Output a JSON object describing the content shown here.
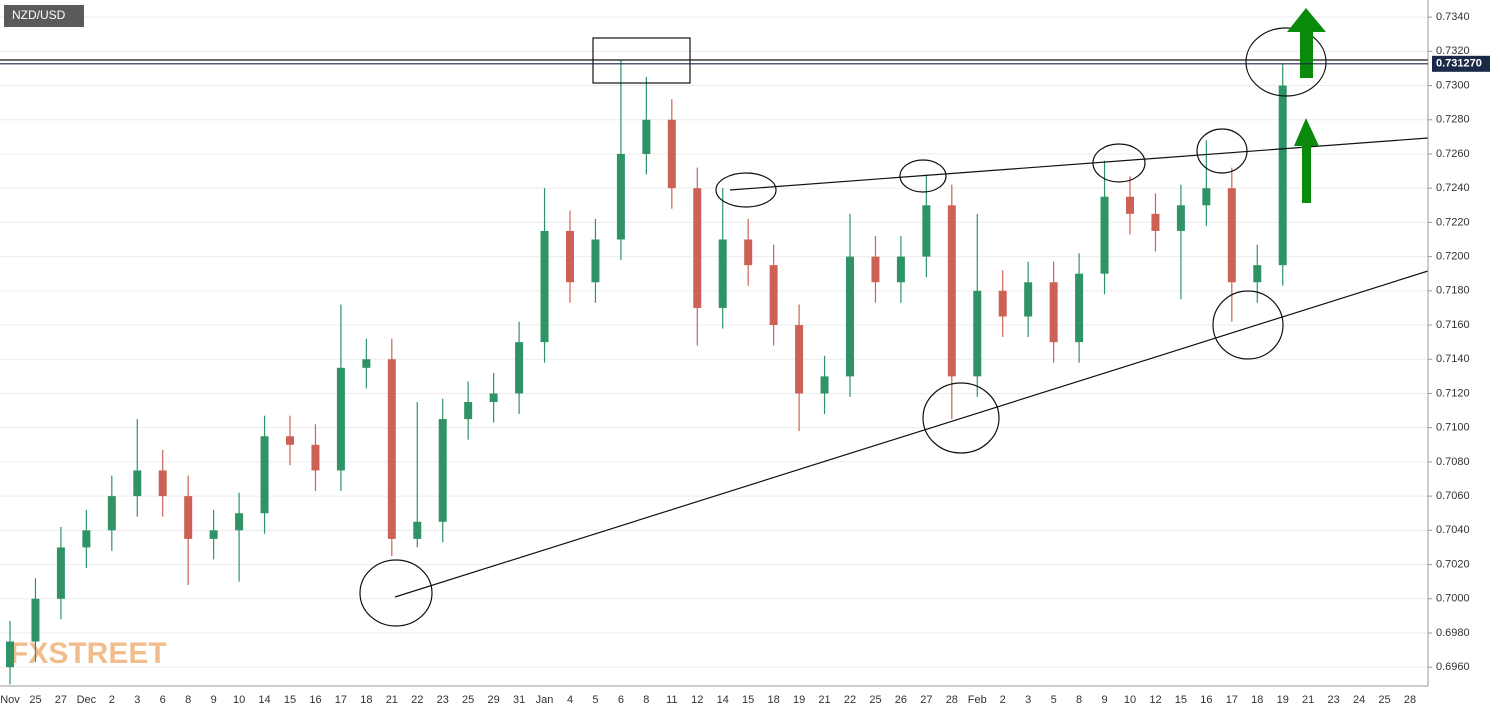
{
  "chart_data": {
    "type": "candlestick",
    "title": "NZD/USD",
    "watermark": "FXSTREET",
    "categories": [
      "Nov",
      "25",
      "27",
      "Dec",
      "2",
      "3",
      "6",
      "8",
      "9",
      "10",
      "14",
      "15",
      "16",
      "17",
      "18",
      "21",
      "22",
      "23",
      "25",
      "29",
      "31",
      "Jan",
      "4",
      "5",
      "6",
      "8",
      "11",
      "12",
      "14",
      "15",
      "18",
      "19",
      "21",
      "22",
      "25",
      "26",
      "27",
      "28",
      "Feb",
      "2",
      "3",
      "5",
      "8",
      "9",
      "10",
      "12",
      "15",
      "16",
      "17",
      "18",
      "19",
      "21",
      "23",
      "24",
      "25",
      "28"
    ],
    "open": [
      0.696,
      0.6975,
      0.7,
      0.703,
      0.704,
      0.706,
      0.7075,
      0.706,
      0.7035,
      0.704,
      0.705,
      0.7095,
      0.709,
      0.7075,
      0.7135,
      0.714,
      0.7035,
      0.7045,
      0.7105,
      0.7115,
      0.712,
      0.715,
      0.7215,
      0.7185,
      0.721,
      0.726,
      0.728,
      0.724,
      0.717,
      0.721,
      0.7195,
      0.716,
      0.712,
      0.713,
      0.72,
      0.7185,
      0.72,
      0.723,
      0.713,
      0.718,
      0.7165,
      0.7185,
      0.715,
      0.719,
      0.7235,
      0.7225,
      0.7215,
      0.723,
      0.724,
      0.7185,
      0.7195,
      null,
      null,
      null,
      null,
      null
    ],
    "high": [
      0.6987,
      0.7012,
      0.7042,
      0.7052,
      0.7072,
      0.7105,
      0.7087,
      0.7072,
      0.7052,
      0.7062,
      0.7107,
      0.7107,
      0.7102,
      0.7172,
      0.7152,
      0.7152,
      0.7115,
      0.7117,
      0.7127,
      0.7132,
      0.7162,
      0.724,
      0.7227,
      0.7222,
      0.7315,
      0.7305,
      0.7292,
      0.7252,
      0.724,
      0.7222,
      0.7207,
      0.7172,
      0.7142,
      0.7225,
      0.7212,
      0.7212,
      0.7248,
      0.7242,
      0.7225,
      0.7192,
      0.7197,
      0.7197,
      0.7202,
      0.7256,
      0.7247,
      0.7237,
      0.7242,
      0.7268,
      0.7252,
      0.7207,
      0.7313,
      null,
      null,
      null,
      null,
      null
    ],
    "low": [
      0.695,
      0.6963,
      0.6988,
      0.7018,
      0.7028,
      0.7048,
      0.7048,
      0.7008,
      0.7023,
      0.701,
      0.7038,
      0.7078,
      0.7063,
      0.7063,
      0.7123,
      0.7025,
      0.703,
      0.7033,
      0.7093,
      0.7103,
      0.7108,
      0.7138,
      0.7173,
      0.7173,
      0.7198,
      0.7248,
      0.7228,
      0.7148,
      0.7158,
      0.7183,
      0.7148,
      0.7098,
      0.7108,
      0.7118,
      0.7173,
      0.7173,
      0.7188,
      0.7105,
      0.7118,
      0.7153,
      0.7153,
      0.7138,
      0.7138,
      0.7178,
      0.7213,
      0.7203,
      0.7175,
      0.7218,
      0.7162,
      0.7173,
      0.7183,
      null,
      null,
      null,
      null,
      null
    ],
    "close": [
      0.6975,
      0.7,
      0.703,
      0.704,
      0.706,
      0.7075,
      0.706,
      0.7035,
      0.704,
      0.705,
      0.7095,
      0.709,
      0.7075,
      0.7135,
      0.714,
      0.7035,
      0.7045,
      0.7105,
      0.7115,
      0.712,
      0.715,
      0.7215,
      0.7185,
      0.721,
      0.726,
      0.728,
      0.724,
      0.717,
      0.721,
      0.7195,
      0.716,
      0.712,
      0.713,
      0.72,
      0.7185,
      0.72,
      0.723,
      0.713,
      0.718,
      0.7165,
      0.7185,
      0.715,
      0.719,
      0.7235,
      0.7225,
      0.7215,
      0.723,
      0.724,
      0.7185,
      0.7195,
      0.73,
      null,
      null,
      null,
      null,
      null
    ],
    "up_color": "#2e9466",
    "down_color": "#cd6155",
    "last_price": {
      "value": 0.73127,
      "label": "0.731270"
    },
    "ylim": [
      0.6949,
      0.735
    ],
    "yticks": [
      {
        "value": 0.696,
        "label": "0.6960"
      },
      {
        "value": 0.698,
        "label": "0.6980"
      },
      {
        "value": 0.7,
        "label": "0.7000"
      },
      {
        "value": 0.702,
        "label": "0.7020"
      },
      {
        "value": 0.704,
        "label": "0.7040"
      },
      {
        "value": 0.706,
        "label": "0.7060"
      },
      {
        "value": 0.708,
        "label": "0.7080"
      },
      {
        "value": 0.71,
        "label": "0.7100"
      },
      {
        "value": 0.712,
        "label": "0.7120"
      },
      {
        "value": 0.714,
        "label": "0.7140"
      },
      {
        "value": 0.716,
        "label": "0.7160"
      },
      {
        "value": 0.718,
        "label": "0.7180"
      },
      {
        "value": 0.72,
        "label": "0.7200"
      },
      {
        "value": 0.722,
        "label": "0.7220"
      },
      {
        "value": 0.724,
        "label": "0.7240"
      },
      {
        "value": 0.726,
        "label": "0.7260"
      },
      {
        "value": 0.728,
        "label": "0.7280"
      },
      {
        "value": 0.73,
        "label": "0.7300"
      },
      {
        "value": 0.732,
        "label": "0.7320"
      },
      {
        "value": 0.734,
        "label": "0.7340"
      }
    ],
    "grid": true
  }
}
